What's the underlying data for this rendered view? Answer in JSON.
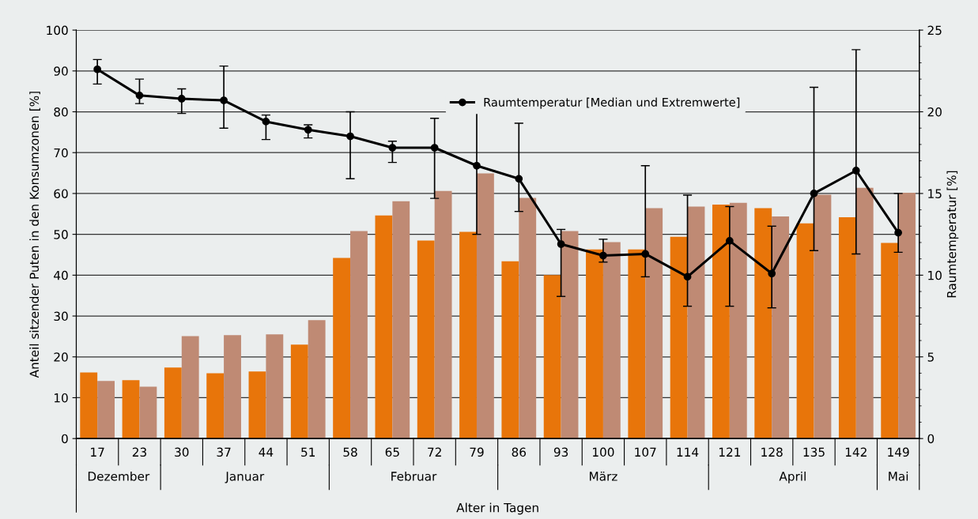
{
  "chart_data": {
    "type": "bar",
    "xlabel": "Alter in Tagen",
    "ylabel": "Anteil sitzender Puten in den Konsumzonen [%]",
    "y2label": "Raumtemperatur [%]",
    "categories": [
      "17",
      "23",
      "30",
      "37",
      "44",
      "51",
      "58",
      "65",
      "72",
      "79",
      "86",
      "93",
      "100",
      "107",
      "114",
      "121",
      "128",
      "135",
      "142",
      "149"
    ],
    "series": [
      {
        "color": "#e8750a",
        "values": [
          16.2,
          14.3,
          17.4,
          16.0,
          16.4,
          23.0,
          44.2,
          54.6,
          48.5,
          50.6,
          43.4,
          40.0,
          46.3,
          46.3,
          49.4,
          57.3,
          56.4,
          52.7,
          54.2,
          47.9
        ]
      },
      {
        "color": "#bf8a74",
        "values": [
          14.1,
          12.7,
          25.1,
          25.3,
          25.5,
          29.0,
          50.8,
          58.1,
          60.6,
          64.9,
          58.9,
          50.8,
          48.1,
          56.4,
          56.8,
          57.7,
          54.4,
          59.7,
          61.4,
          60.2
        ]
      },
      {
        "type": "line",
        "axis": "y2",
        "name": "Raumtemperatur [Median und Extremwerte]",
        "color": "#000000",
        "marker": "circle",
        "line_style": "solid",
        "values": [
          22.6,
          21.0,
          20.8,
          20.7,
          19.4,
          18.9,
          18.5,
          17.8,
          17.8,
          16.7,
          15.9,
          11.9,
          11.2,
          11.3,
          9.9,
          12.1,
          10.1,
          15.0,
          16.4,
          12.6
        ],
        "errors": [
          [
            21.7,
            23.2
          ],
          [
            20.5,
            22.0
          ],
          [
            19.9,
            21.4
          ],
          [
            19.0,
            22.8
          ],
          [
            18.3,
            19.8
          ],
          [
            18.4,
            19.2
          ],
          [
            15.9,
            20.0
          ],
          [
            16.9,
            18.2
          ],
          [
            14.7,
            19.6
          ],
          [
            12.5,
            20.0
          ],
          [
            13.9,
            19.3
          ],
          [
            8.7,
            12.8
          ],
          [
            10.8,
            12.2
          ],
          [
            9.9,
            16.7
          ],
          [
            8.1,
            14.9
          ],
          [
            8.1,
            14.2
          ],
          [
            8.0,
            13.0
          ],
          [
            11.5,
            21.5
          ],
          [
            11.3,
            23.8
          ],
          [
            11.4,
            15.0
          ]
        ]
      }
    ],
    "ylim": [
      0,
      100
    ],
    "yticks": [
      0,
      10,
      20,
      30,
      40,
      50,
      60,
      70,
      80,
      90,
      100
    ],
    "y2lim": [
      0,
      25
    ],
    "y2ticks": [
      0,
      5,
      10,
      15,
      20,
      25
    ],
    "grid": "y",
    "legend": "top right",
    "annotations": [
      "Dezember",
      "Januar",
      "Februar",
      "März",
      "April",
      "Mai"
    ]
  }
}
